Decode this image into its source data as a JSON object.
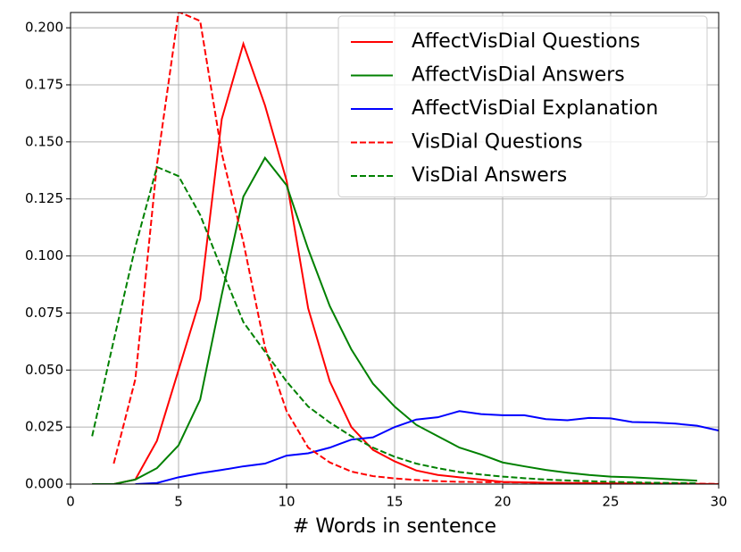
{
  "chart_data": {
    "type": "line",
    "xlabel": "# Words in sentence",
    "x": [
      1,
      2,
      3,
      4,
      5,
      6,
      7,
      8,
      9,
      10,
      11,
      12,
      13,
      14,
      15,
      16,
      17,
      18,
      19,
      20,
      21,
      22,
      23,
      24,
      25,
      26,
      27,
      28,
      29,
      30
    ],
    "series": [
      {
        "name": "AffectVisDial Questions",
        "color": "#ff0000",
        "linestyle": "solid",
        "values": [
          0,
          0,
          0.002,
          0.019,
          0.05,
          0.081,
          0.16,
          0.193,
          0.166,
          0.133,
          0.077,
          0.045,
          0.025,
          0.015,
          0.01,
          0.006,
          0.004,
          0.003,
          0.002,
          0.001,
          0.0008,
          0.0006,
          0.0005,
          0.0004,
          0.0003,
          0.0003,
          0.0002,
          0.0002,
          0.0001,
          0
        ]
      },
      {
        "name": "AffectVisDial Answers",
        "color": "#008000",
        "linestyle": "solid",
        "values": [
          0,
          0,
          0.002,
          0.007,
          0.017,
          0.037,
          0.083,
          0.126,
          0.143,
          0.131,
          0.103,
          0.078,
          0.059,
          0.044,
          0.034,
          0.026,
          0.021,
          0.016,
          0.013,
          0.0095,
          0.0078,
          0.0062,
          0.005,
          0.004,
          0.0033,
          0.003,
          0.0025,
          0.002,
          0.0015,
          null
        ]
      },
      {
        "name": "AffectVisDial Explanation",
        "color": "#0000ff",
        "linestyle": "solid",
        "values": [
          null,
          null,
          0,
          0.0005,
          0.003,
          0.0048,
          0.0062,
          0.0078,
          0.009,
          0.0125,
          0.0135,
          0.016,
          0.0195,
          0.0205,
          0.025,
          0.0283,
          0.0293,
          0.032,
          0.0307,
          0.0302,
          0.0302,
          0.0285,
          0.028,
          0.029,
          0.0288,
          0.0272,
          0.027,
          0.0265,
          0.0256,
          0.0235
        ]
      },
      {
        "name": "VisDial Questions",
        "color": "#ff0000",
        "linestyle": "dashed",
        "values": [
          null,
          0.009,
          0.046,
          0.14,
          0.207,
          0.203,
          0.145,
          0.106,
          0.06,
          0.032,
          0.016,
          0.0095,
          0.0055,
          0.0035,
          0.0025,
          0.0018,
          0.0013,
          0.001,
          0.0009,
          0.0008,
          0.0007,
          0.0006,
          0.0005,
          0.0005,
          0.0004,
          0.0004,
          0.0003,
          0.0003,
          0.0002,
          0.0001
        ]
      },
      {
        "name": "VisDial Answers",
        "color": "#008000",
        "linestyle": "dashed",
        "values": [
          0.021,
          0.063,
          0.104,
          0.139,
          0.135,
          0.118,
          0.094,
          0.071,
          0.058,
          0.045,
          0.034,
          0.027,
          0.021,
          0.016,
          0.012,
          0.009,
          0.007,
          0.0053,
          0.0042,
          0.0033,
          0.0026,
          0.002,
          0.0016,
          0.0013,
          0.001,
          0.0008,
          0.0006,
          0.0005,
          0.0004,
          null
        ]
      }
    ],
    "xlim": [
      0,
      30
    ],
    "xticks": [
      0,
      5,
      10,
      15,
      20,
      25,
      30
    ],
    "ylim": [
      0,
      0.2067
    ],
    "yticks": [
      {
        "value": 0,
        "label": "0.000"
      },
      {
        "value": 0.025,
        "label": "0.025"
      },
      {
        "value": 0.05,
        "label": "0.050"
      },
      {
        "value": 0.075,
        "label": "0.075"
      },
      {
        "value": 0.1,
        "label": "0.100"
      },
      {
        "value": 0.125,
        "label": "0.125"
      },
      {
        "value": 0.15,
        "label": "0.150"
      },
      {
        "value": 0.175,
        "label": "0.175"
      },
      {
        "value": 0.2,
        "label": "0.200"
      }
    ],
    "grid": true,
    "legend": "upper right"
  }
}
